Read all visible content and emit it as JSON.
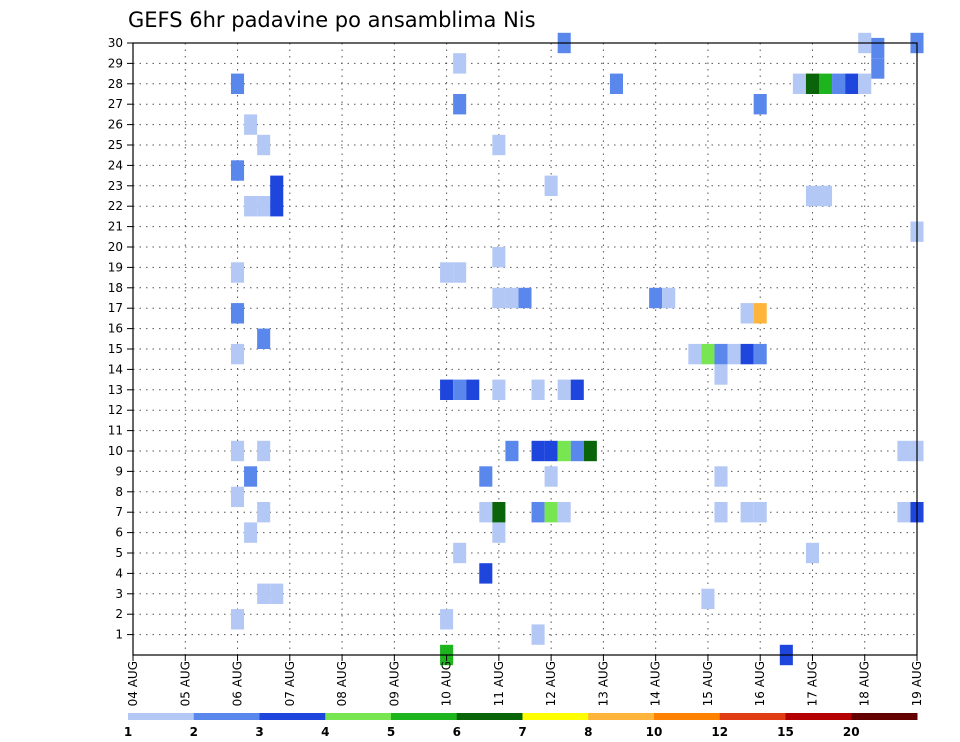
{
  "chart_data": {
    "type": "heatmap",
    "title": "GEFS 6hr padavine po ansamblima Nis",
    "x_tick_labels": [
      "04 AUG",
      "05 AUG",
      "06 AUG",
      "07 AUG",
      "08 AUG",
      "09 AUG",
      "10 AUG",
      "11 AUG",
      "12 AUG",
      "13 AUG",
      "14 AUG",
      "15 AUG",
      "16 AUG",
      "17 AUG",
      "18 AUG",
      "19 AUG"
    ],
    "y_tick_labels": [
      "1",
      "2",
      "3",
      "4",
      "5",
      "6",
      "7",
      "8",
      "9",
      "10",
      "11",
      "12",
      "13",
      "14",
      "15",
      "16",
      "17",
      "18",
      "19",
      "20",
      "21",
      "22",
      "23",
      "24",
      "25",
      "26",
      "27",
      "28",
      "29",
      "30"
    ],
    "x_range_days": [
      0,
      15
    ],
    "y_range": [
      0,
      30
    ],
    "grid": "dotted",
    "legend": {
      "placement": "bottom",
      "labels": [
        "1",
        "2",
        "3",
        "4",
        "5",
        "6",
        "7",
        "8",
        "10",
        "12",
        "15",
        "20"
      ],
      "colors": [
        "#b4c8f5",
        "#5a87eb",
        "#1e46dc",
        "#78e650",
        "#1eb41e",
        "#0a640a",
        "#ffff00",
        "#ffb43c",
        "#ff8200",
        "#e13c14",
        "#b40000",
        "#640000"
      ]
    },
    "cells": [
      {
        "x": 2.0,
        "y": 1.75,
        "level": 1
      },
      {
        "x": 2.0,
        "y": 7.75,
        "level": 1
      },
      {
        "x": 2.0,
        "y": 10.0,
        "level": 1
      },
      {
        "x": 2.0,
        "y": 14.75,
        "level": 1
      },
      {
        "x": 2.0,
        "y": 16.75,
        "level": 2
      },
      {
        "x": 2.0,
        "y": 18.75,
        "level": 1
      },
      {
        "x": 2.0,
        "y": 23.75,
        "level": 2
      },
      {
        "x": 2.0,
        "y": 28.0,
        "level": 2
      },
      {
        "x": 2.25,
        "y": 6.0,
        "level": 1
      },
      {
        "x": 2.25,
        "y": 8.75,
        "level": 2
      },
      {
        "x": 2.25,
        "y": 22.0,
        "level": 1
      },
      {
        "x": 2.25,
        "y": 26.0,
        "level": 1
      },
      {
        "x": 2.5,
        "y": 3.0,
        "level": 1
      },
      {
        "x": 2.5,
        "y": 7.0,
        "level": 1
      },
      {
        "x": 2.5,
        "y": 10.0,
        "level": 1
      },
      {
        "x": 2.5,
        "y": 15.5,
        "level": 2
      },
      {
        "x": 2.5,
        "y": 22.0,
        "level": 1
      },
      {
        "x": 2.5,
        "y": 25.0,
        "level": 1
      },
      {
        "x": 2.75,
        "y": 3.0,
        "level": 1
      },
      {
        "x": 2.75,
        "y": 22.0,
        "level": 3
      },
      {
        "x": 2.75,
        "y": 23.0,
        "level": 3
      },
      {
        "x": 6.0,
        "y": 0.0,
        "level": 5
      },
      {
        "x": 6.0,
        "y": 1.75,
        "level": 1
      },
      {
        "x": 6.0,
        "y": 13.0,
        "level": 3
      },
      {
        "x": 6.0,
        "y": 18.75,
        "level": 1
      },
      {
        "x": 6.25,
        "y": 5.0,
        "level": 1
      },
      {
        "x": 6.25,
        "y": 13.0,
        "level": 2
      },
      {
        "x": 6.25,
        "y": 18.75,
        "level": 1
      },
      {
        "x": 6.25,
        "y": 27.0,
        "level": 2
      },
      {
        "x": 6.25,
        "y": 29.0,
        "level": 1
      },
      {
        "x": 6.5,
        "y": 13.0,
        "level": 3
      },
      {
        "x": 6.75,
        "y": 4.0,
        "level": 3
      },
      {
        "x": 6.75,
        "y": 7.0,
        "level": 1
      },
      {
        "x": 6.75,
        "y": 8.75,
        "level": 2
      },
      {
        "x": 7.0,
        "y": 6.0,
        "level": 1
      },
      {
        "x": 7.0,
        "y": 7.0,
        "level": 6
      },
      {
        "x": 7.0,
        "y": 13.0,
        "level": 1
      },
      {
        "x": 7.0,
        "y": 17.5,
        "level": 1
      },
      {
        "x": 7.0,
        "y": 19.5,
        "level": 1
      },
      {
        "x": 7.0,
        "y": 25.0,
        "level": 1
      },
      {
        "x": 7.25,
        "y": 10.0,
        "level": 2
      },
      {
        "x": 7.25,
        "y": 17.5,
        "level": 1
      },
      {
        "x": 7.5,
        "y": 17.5,
        "level": 2
      },
      {
        "x": 7.75,
        "y": 1.0,
        "level": 1
      },
      {
        "x": 7.75,
        "y": 7.0,
        "level": 2
      },
      {
        "x": 7.75,
        "y": 10.0,
        "level": 3
      },
      {
        "x": 7.75,
        "y": 13.0,
        "level": 1
      },
      {
        "x": 8.0,
        "y": 7.0,
        "level": 4
      },
      {
        "x": 8.0,
        "y": 8.75,
        "level": 1
      },
      {
        "x": 8.0,
        "y": 10.0,
        "level": 3
      },
      {
        "x": 8.0,
        "y": 23.0,
        "level": 1
      },
      {
        "x": 8.25,
        "y": 7.0,
        "level": 1
      },
      {
        "x": 8.25,
        "y": 10.0,
        "level": 4
      },
      {
        "x": 8.25,
        "y": 13.0,
        "level": 1
      },
      {
        "x": 8.25,
        "y": 30.0,
        "level": 2
      },
      {
        "x": 8.5,
        "y": 10.0,
        "level": 2
      },
      {
        "x": 8.5,
        "y": 13.0,
        "level": 3
      },
      {
        "x": 8.75,
        "y": 10.0,
        "level": 6
      },
      {
        "x": 9.25,
        "y": 28.0,
        "level": 2
      },
      {
        "x": 10.0,
        "y": 17.5,
        "level": 2
      },
      {
        "x": 10.25,
        "y": 17.5,
        "level": 1
      },
      {
        "x": 10.75,
        "y": 14.75,
        "level": 1
      },
      {
        "x": 11.0,
        "y": 2.75,
        "level": 1
      },
      {
        "x": 11.0,
        "y": 14.75,
        "level": 4
      },
      {
        "x": 11.25,
        "y": 7.0,
        "level": 1
      },
      {
        "x": 11.25,
        "y": 8.75,
        "level": 1
      },
      {
        "x": 11.25,
        "y": 13.75,
        "level": 1
      },
      {
        "x": 11.25,
        "y": 14.75,
        "level": 2
      },
      {
        "x": 11.5,
        "y": 14.75,
        "level": 1
      },
      {
        "x": 11.75,
        "y": 7.0,
        "level": 1
      },
      {
        "x": 11.75,
        "y": 14.75,
        "level": 3
      },
      {
        "x": 11.75,
        "y": 16.75,
        "level": 1
      },
      {
        "x": 12.0,
        "y": 7.0,
        "level": 1
      },
      {
        "x": 12.0,
        "y": 14.75,
        "level": 2
      },
      {
        "x": 12.0,
        "y": 16.75,
        "level": 8
      },
      {
        "x": 12.0,
        "y": 27.0,
        "level": 2
      },
      {
        "x": 12.5,
        "y": 0.0,
        "level": 3
      },
      {
        "x": 12.75,
        "y": 28.0,
        "level": 1
      },
      {
        "x": 13.0,
        "y": 5.0,
        "level": 1
      },
      {
        "x": 13.0,
        "y": 22.5,
        "level": 1
      },
      {
        "x": 13.0,
        "y": 28.0,
        "level": 6
      },
      {
        "x": 13.25,
        "y": 22.5,
        "level": 1
      },
      {
        "x": 13.25,
        "y": 28.0,
        "level": 5
      },
      {
        "x": 13.5,
        "y": 28.0,
        "level": 2
      },
      {
        "x": 13.75,
        "y": 28.0,
        "level": 3
      },
      {
        "x": 14.0,
        "y": 28.0,
        "level": 1
      },
      {
        "x": 14.0,
        "y": 30.0,
        "level": 1
      },
      {
        "x": 14.25,
        "y": 28.75,
        "level": 2
      },
      {
        "x": 14.25,
        "y": 29.75,
        "level": 2
      },
      {
        "x": 14.75,
        "y": 7.0,
        "level": 1
      },
      {
        "x": 14.75,
        "y": 10.0,
        "level": 1
      },
      {
        "x": 15.0,
        "y": 7.0,
        "level": 3
      },
      {
        "x": 15.0,
        "y": 10.0,
        "level": 1
      },
      {
        "x": 15.0,
        "y": 20.75,
        "level": 1
      },
      {
        "x": 15.0,
        "y": 30.0,
        "level": 2
      }
    ]
  }
}
